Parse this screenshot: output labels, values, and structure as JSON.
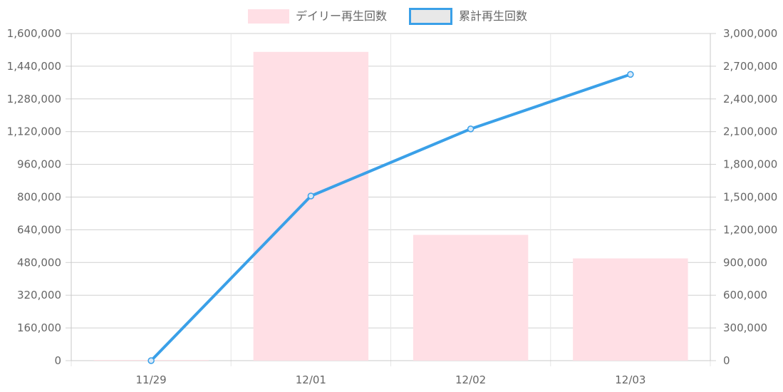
{
  "chart_data": {
    "type": "bar",
    "categories": [
      "11/29",
      "12/01",
      "12/02",
      "12/03"
    ],
    "series": [
      {
        "name": "デイリー再生回数",
        "type": "bar",
        "axis": "left",
        "values": [
          0,
          1510000,
          615000,
          500000
        ],
        "color": "#ffdfe5"
      },
      {
        "name": "累計再生回数",
        "type": "line",
        "axis": "right",
        "values": [
          0,
          1510000,
          2125000,
          2625000
        ],
        "color": "#3aa0e8"
      }
    ],
    "left_axis": {
      "min": 0,
      "max": 1600000,
      "ticks": [
        "0",
        "160,000",
        "320,000",
        "480,000",
        "640,000",
        "800,000",
        "960,000",
        "1,120,000",
        "1,280,000",
        "1,440,000",
        "1,600,000"
      ]
    },
    "right_axis": {
      "min": 0,
      "max": 3000000,
      "ticks": [
        "0",
        "300,000",
        "600,000",
        "900,000",
        "1,200,000",
        "1,500,000",
        "1,800,000",
        "2,100,000",
        "2,400,000",
        "2,700,000",
        "3,000,000"
      ]
    },
    "grid": true,
    "legend_position": "top-center"
  }
}
